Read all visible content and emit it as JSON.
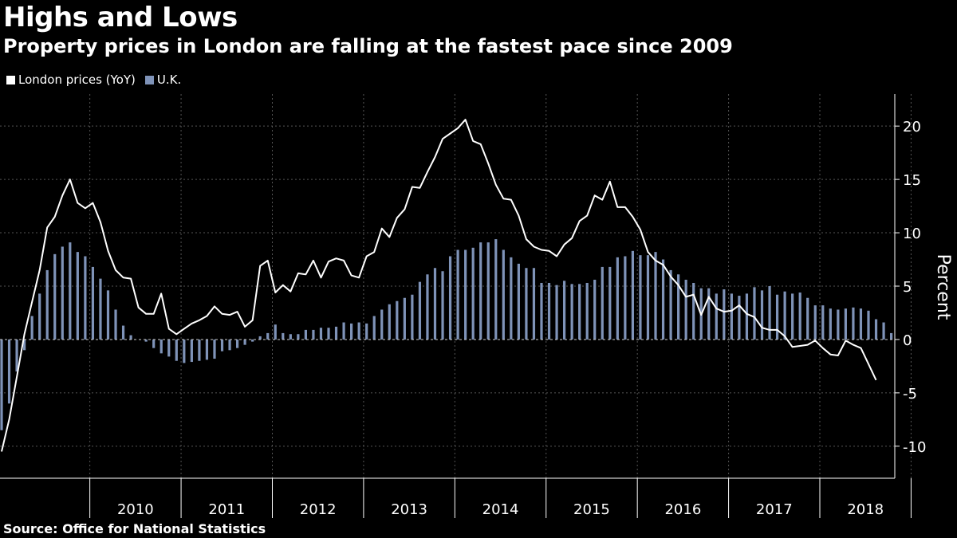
{
  "title": "Highs and Lows",
  "subtitle": "Property prices in London are falling at the fastest pace since 2009",
  "source": "Source:  Office for National Statistics",
  "legend": [
    {
      "label": "London prices (YoY)",
      "color": "#ffffff"
    },
    {
      "label": "U.K.",
      "color": "#7f93b8"
    }
  ],
  "chart_data": {
    "type": "line+bar",
    "title": "Highs and Lows",
    "subtitle": "Property prices in London are falling at the fastest pace since 2009",
    "ylabel": "Percent",
    "ylim": [
      -13,
      23
    ],
    "yticks": [
      -10,
      -5,
      0,
      5,
      10,
      15,
      20
    ],
    "x_axis": {
      "type": "monthly",
      "start": "2009-01",
      "end": "2018-09",
      "year_labels": [
        "2010",
        "2011",
        "2012",
        "2013",
        "2014",
        "2015",
        "2016",
        "2017",
        "2018"
      ]
    },
    "grid": true,
    "legend_position": "top-left",
    "colors": {
      "line": "#ffffff",
      "bars": "#7f93b8",
      "background": "#000000"
    },
    "series": [
      {
        "name": "London prices (YoY)",
        "kind": "line",
        "values": [
          -10.5,
          -7.5,
          -3.5,
          0.5,
          3.5,
          6.5,
          10.5,
          11.5,
          13.5,
          15.0,
          12.8,
          12.3,
          12.8,
          11.0,
          8.3,
          6.5,
          5.8,
          5.7,
          3.0,
          2.4,
          2.4,
          4.3,
          1.0,
          0.5,
          1.0,
          1.5,
          1.8,
          2.2,
          3.1,
          2.4,
          2.3,
          2.6,
          1.2,
          1.8,
          6.9,
          7.4,
          4.4,
          5.1,
          4.5,
          6.2,
          6.1,
          7.4,
          5.8,
          7.3,
          7.6,
          7.4,
          6.0,
          5.8,
          7.8,
          8.2,
          10.4,
          9.6,
          11.4,
          12.2,
          14.3,
          14.2,
          15.7,
          17.1,
          18.8,
          19.3,
          19.8,
          20.6,
          18.6,
          18.3,
          16.5,
          14.5,
          13.2,
          13.1,
          11.6,
          9.4,
          8.7,
          8.4,
          8.3,
          7.8,
          8.9,
          9.5,
          11.1,
          11.6,
          13.5,
          13.1,
          14.8,
          12.4,
          12.4,
          11.5,
          10.3,
          8.2,
          7.4,
          7.0,
          5.9,
          5.1,
          4.0,
          4.2,
          2.3,
          4.0,
          2.9,
          2.6,
          2.7,
          3.2,
          2.4,
          2.1,
          1.1,
          0.9,
          0.9,
          0.3,
          -0.7,
          -0.6,
          -0.5,
          -0.1,
          -0.8,
          -1.4,
          -1.5,
          -0.1,
          -0.5,
          -0.8,
          -2.3,
          -3.8
        ]
      },
      {
        "name": "U.K.",
        "kind": "bar",
        "values": [
          -8.5,
          -6.0,
          -3.0,
          -1.0,
          2.2,
          4.3,
          6.5,
          8.0,
          8.7,
          9.1,
          8.2,
          7.8,
          6.8,
          5.7,
          4.6,
          2.8,
          1.3,
          0.4,
          0.0,
          -0.2,
          -0.8,
          -1.3,
          -1.6,
          -2.0,
          -2.2,
          -2.1,
          -2.0,
          -1.9,
          -1.8,
          -1.1,
          -1.0,
          -0.8,
          -0.5,
          -0.2,
          0.3,
          0.6,
          1.4,
          0.6,
          0.5,
          0.5,
          0.9,
          0.9,
          1.1,
          1.1,
          1.2,
          1.6,
          1.5,
          1.6,
          1.5,
          2.2,
          2.8,
          3.3,
          3.6,
          3.9,
          4.2,
          5.4,
          6.1,
          6.7,
          6.4,
          7.8,
          8.4,
          8.4,
          8.6,
          9.1,
          9.1,
          9.4,
          8.4,
          7.7,
          7.1,
          6.7,
          6.7,
          5.3,
          5.3,
          5.1,
          5.5,
          5.2,
          5.2,
          5.3,
          5.6,
          6.8,
          6.8,
          7.7,
          7.8,
          8.3,
          7.9,
          7.9,
          8.2,
          7.5,
          6.5,
          6.1,
          5.6,
          5.3,
          4.8,
          4.8,
          4.3,
          4.7,
          4.3,
          4.1,
          4.3,
          4.9,
          4.6,
          5.0,
          4.2,
          4.5,
          4.3,
          4.4,
          3.9,
          3.2,
          3.2,
          2.9,
          2.8,
          2.9,
          3.0,
          2.9,
          2.7,
          1.9,
          1.6,
          0.6
        ]
      }
    ]
  }
}
